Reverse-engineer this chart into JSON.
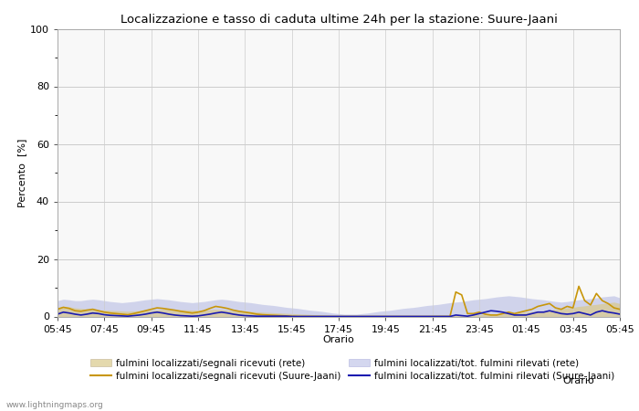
{
  "title": "Localizzazione e tasso di caduta ultime 24h per la stazione: Suure-Jaani",
  "ylabel": "Percento  [%]",
  "xlabel": "Orario",
  "ylim": [
    0,
    100
  ],
  "yticks": [
    0,
    20,
    40,
    60,
    80,
    100
  ],
  "yticks_minor": [
    10,
    30,
    50,
    70,
    90
  ],
  "x_labels": [
    "05:45",
    "07:45",
    "09:45",
    "11:45",
    "13:45",
    "15:45",
    "17:45",
    "19:45",
    "21:45",
    "23:45",
    "01:45",
    "03:45",
    "05:45"
  ],
  "bg_color": "#ffffff",
  "plot_bg_color": "#f8f8f8",
  "grid_color": "#cccccc",
  "watermark": "www.lightningmaps.org",
  "legend": [
    {
      "label": "fulmini localizzati/segnali ricevuti (rete)",
      "type": "fill",
      "color": "#d9c98a",
      "alpha": 0.7
    },
    {
      "label": "fulmini localizzati/segnali ricevuti (Suure-Jaani)",
      "type": "line",
      "color": "#c8960a",
      "lw": 1.2
    },
    {
      "label": "fulmini localizzati/tot. fulmini rilevati (rete)",
      "type": "fill",
      "color": "#aab0e0",
      "alpha": 0.5
    },
    {
      "label": "fulmini localizzati/tot. fulmini rilevati (Suure-Jaani)",
      "type": "line",
      "color": "#1a1ab0",
      "lw": 1.2
    }
  ],
  "n_points": 97,
  "rete_segnali": [
    3.2,
    3.5,
    3.4,
    3.0,
    2.8,
    2.6,
    2.4,
    2.3,
    2.2,
    2.1,
    2.0,
    1.9,
    1.8,
    1.9,
    2.0,
    2.1,
    2.2,
    2.3,
    2.5,
    2.6,
    2.5,
    2.4,
    2.3,
    2.2,
    2.2,
    2.3,
    2.4,
    2.5,
    2.4,
    2.2,
    2.0,
    1.9,
    1.8,
    1.7,
    1.6,
    1.5,
    1.4,
    1.3,
    1.2,
    1.1,
    1.0,
    0.9,
    0.8,
    0.7,
    0.6,
    0.5,
    0.4,
    0.3,
    0.2,
    0.2,
    0.2,
    0.2,
    0.2,
    0.2,
    0.2,
    0.2,
    0.2,
    0.2,
    0.2,
    0.2,
    0.2,
    0.2,
    0.2,
    0.3,
    0.4,
    0.5,
    0.5,
    0.5,
    0.5,
    0.5,
    0.5,
    0.6,
    0.7,
    0.8,
    0.8,
    0.9,
    1.0,
    1.1,
    1.2,
    1.4,
    1.5,
    1.7,
    1.8,
    2.0,
    2.2,
    2.5,
    2.7,
    3.0,
    3.2,
    3.5,
    3.7,
    4.0,
    4.2,
    4.5,
    4.7,
    5.0,
    4.5
  ],
  "rete_tot": [
    5.5,
    6.0,
    5.8,
    5.5,
    5.5,
    5.8,
    6.0,
    5.8,
    5.5,
    5.2,
    5.0,
    4.8,
    5.0,
    5.2,
    5.5,
    5.8,
    6.0,
    6.2,
    6.0,
    5.8,
    5.5,
    5.2,
    5.0,
    4.8,
    5.0,
    5.2,
    5.5,
    5.8,
    6.0,
    5.8,
    5.5,
    5.2,
    5.0,
    4.8,
    4.5,
    4.2,
    4.0,
    3.8,
    3.5,
    3.2,
    3.0,
    2.8,
    2.5,
    2.2,
    2.0,
    1.8,
    1.5,
    1.2,
    1.0,
    0.8,
    0.8,
    0.8,
    1.0,
    1.2,
    1.5,
    1.8,
    2.0,
    2.2,
    2.5,
    2.8,
    3.0,
    3.2,
    3.5,
    3.8,
    4.0,
    4.2,
    4.5,
    4.8,
    5.0,
    5.2,
    5.5,
    5.8,
    6.0,
    6.2,
    6.5,
    6.8,
    7.0,
    7.2,
    7.0,
    6.8,
    6.5,
    6.2,
    6.0,
    5.8,
    5.5,
    5.2,
    5.0,
    5.2,
    5.5,
    5.8,
    6.0,
    6.2,
    6.5,
    6.8,
    7.0,
    7.2,
    6.5
  ],
  "station_segnali": [
    2.5,
    3.2,
    2.8,
    2.0,
    1.8,
    2.2,
    2.5,
    2.0,
    1.5,
    1.2,
    1.0,
    0.8,
    0.6,
    1.0,
    1.5,
    2.0,
    2.5,
    3.0,
    2.8,
    2.5,
    2.2,
    1.8,
    1.5,
    1.2,
    1.5,
    2.0,
    2.8,
    3.5,
    3.2,
    2.8,
    2.2,
    1.8,
    1.5,
    1.2,
    0.8,
    0.6,
    0.5,
    0.4,
    0.3,
    0.2,
    0.1,
    0.0,
    0.0,
    0.0,
    0.0,
    0.0,
    0.0,
    0.0,
    0.0,
    0.0,
    0.0,
    0.0,
    0.0,
    0.0,
    0.0,
    0.0,
    0.0,
    0.0,
    0.0,
    0.0,
    0.0,
    0.0,
    0.0,
    0.0,
    0.0,
    0.0,
    0.0,
    0.0,
    8.5,
    7.5,
    1.0,
    1.0,
    1.5,
    0.8,
    0.5,
    0.5,
    1.0,
    1.5,
    1.0,
    1.5,
    2.0,
    2.5,
    3.5,
    4.0,
    4.5,
    3.0,
    2.5,
    3.5,
    3.0,
    10.5,
    5.5,
    4.0,
    8.0,
    5.5,
    4.5,
    3.0,
    2.5
  ],
  "station_tot": [
    0.8,
    1.5,
    1.2,
    0.8,
    0.5,
    0.8,
    1.2,
    1.0,
    0.6,
    0.4,
    0.3,
    0.2,
    0.1,
    0.3,
    0.5,
    0.8,
    1.2,
    1.5,
    1.2,
    0.8,
    0.5,
    0.3,
    0.2,
    0.1,
    0.2,
    0.5,
    0.8,
    1.2,
    1.5,
    1.2,
    0.8,
    0.5,
    0.3,
    0.2,
    0.1,
    0.1,
    0.1,
    0.1,
    0.1,
    0.1,
    0.0,
    0.0,
    0.0,
    0.0,
    0.0,
    0.0,
    0.0,
    0.0,
    0.0,
    0.0,
    0.0,
    0.0,
    0.0,
    0.0,
    0.0,
    0.0,
    0.0,
    0.0,
    0.0,
    0.0,
    0.0,
    0.0,
    0.0,
    0.0,
    0.0,
    0.0,
    0.0,
    0.0,
    0.5,
    0.3,
    0.1,
    0.5,
    1.0,
    1.5,
    2.0,
    1.8,
    1.5,
    1.0,
    0.5,
    0.5,
    0.5,
    1.0,
    1.5,
    1.5,
    2.0,
    1.5,
    1.0,
    0.8,
    1.0,
    1.5,
    1.0,
    0.5,
    1.5,
    2.0,
    1.5,
    1.2,
    0.8
  ]
}
